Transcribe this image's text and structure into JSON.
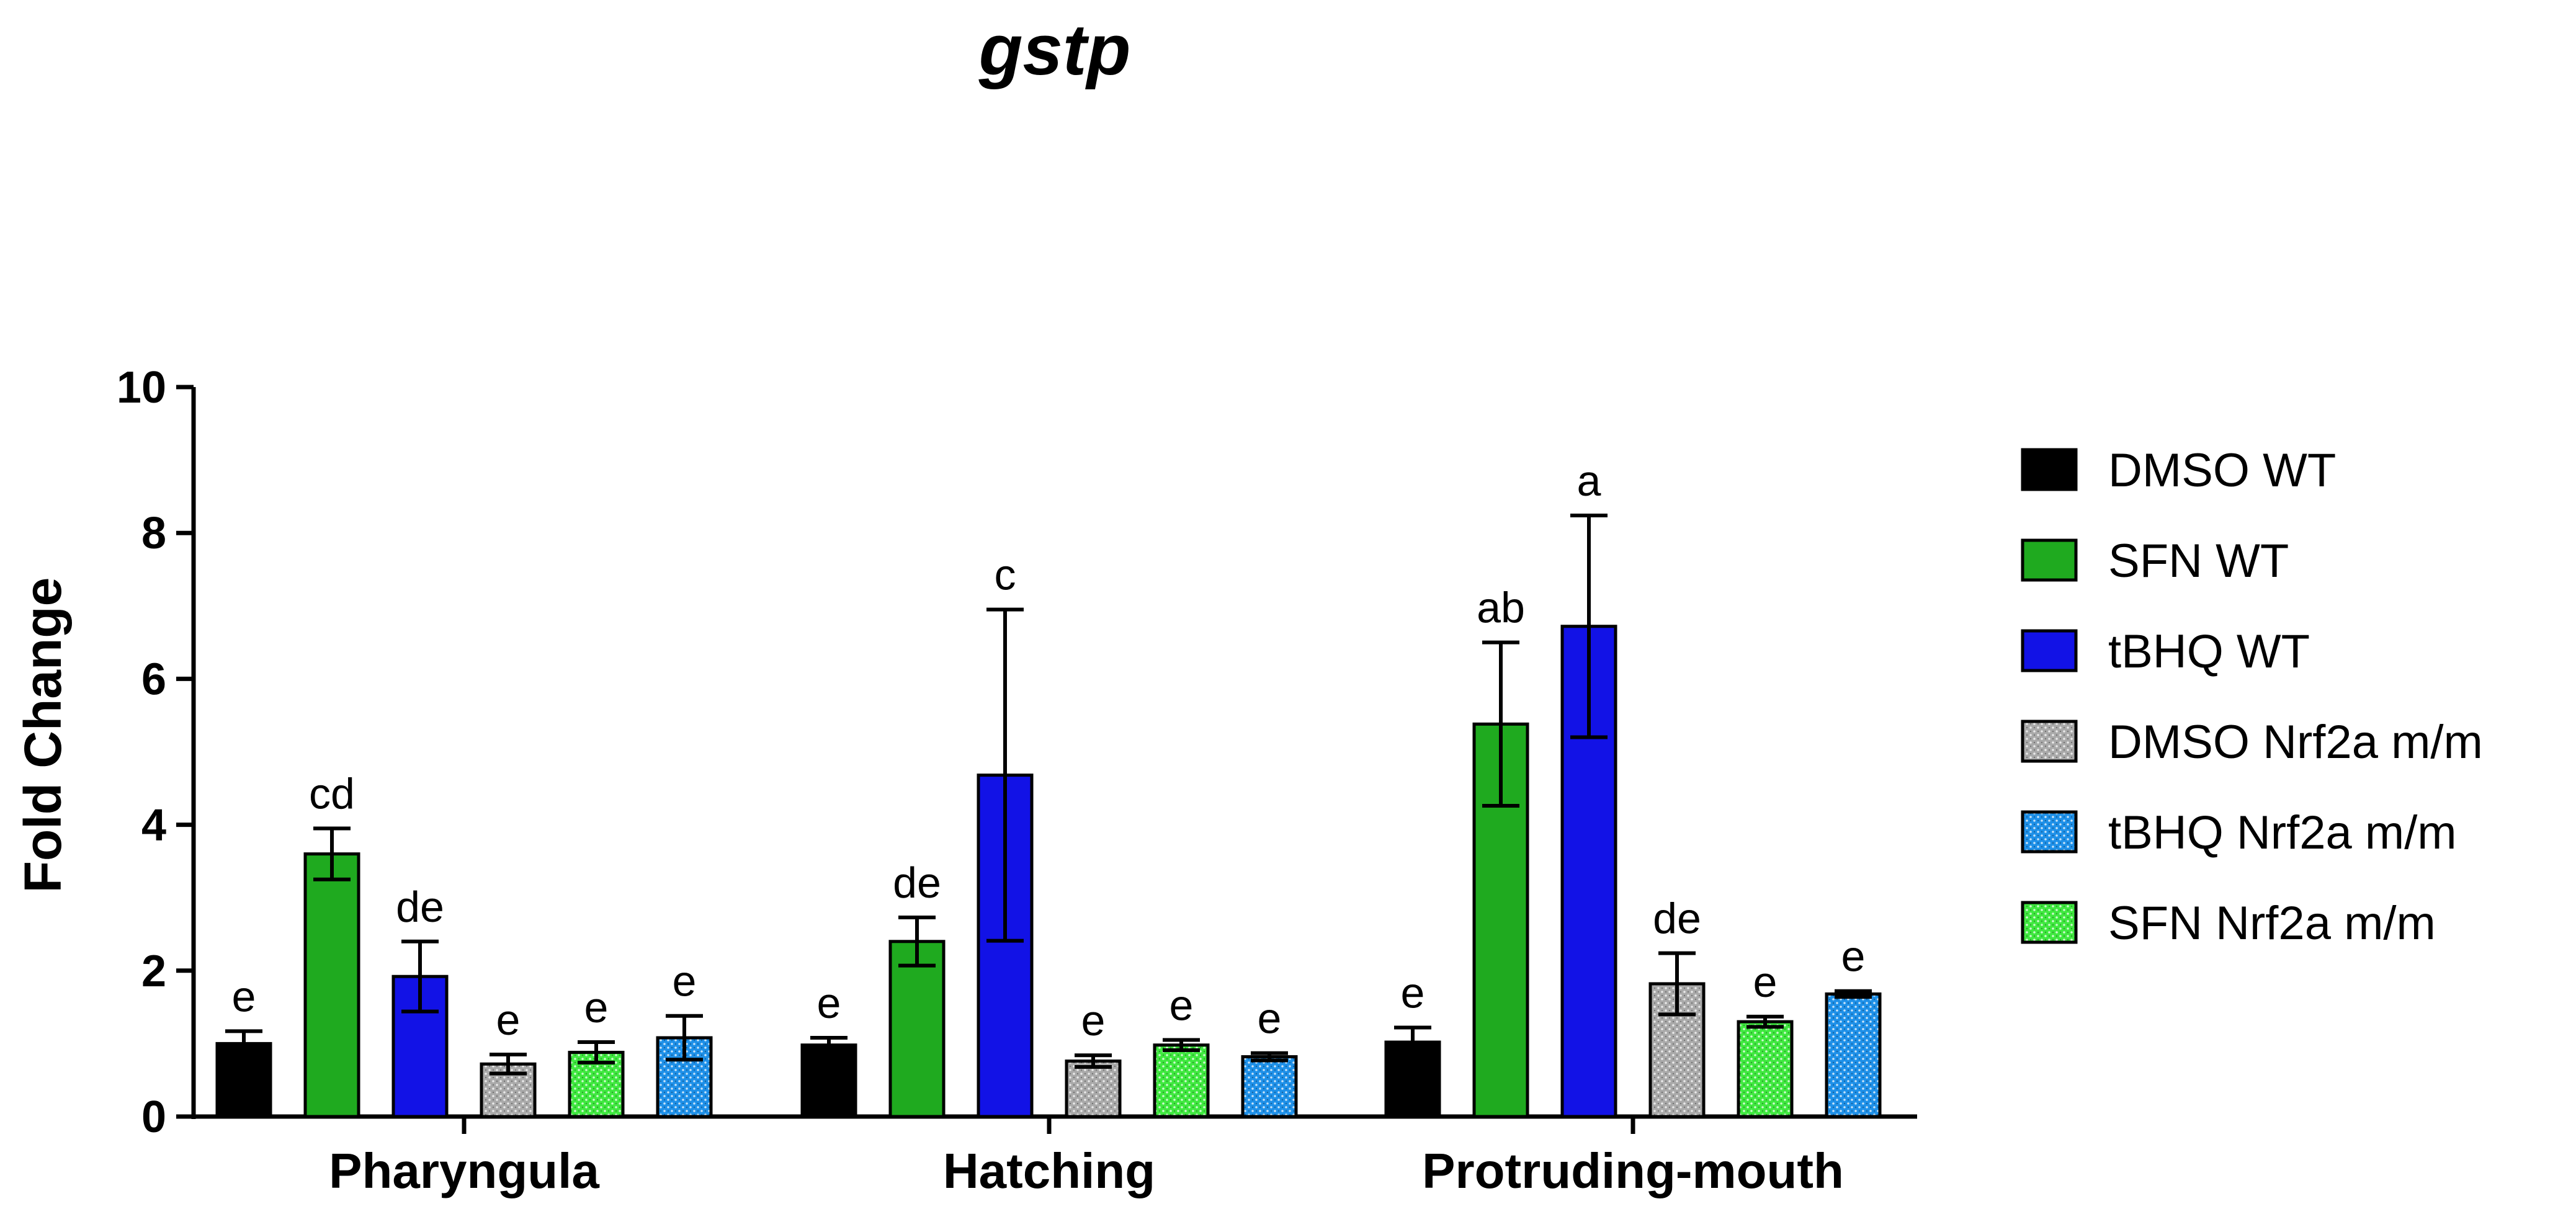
{
  "chart_data": {
    "type": "bar",
    "title": "gstp",
    "xlabel": "",
    "ylabel": "Fold Change",
    "ylim": [
      0,
      10
    ],
    "yticks": [
      0,
      2,
      4,
      6,
      8,
      10
    ],
    "categories": [
      "Pharyngula",
      "Hatching",
      "Protruding-mouth"
    ],
    "series": [
      {
        "name": "DMSO WT",
        "color": "#000000",
        "pattern": "solid",
        "values": [
          1.0,
          0.98,
          1.02
        ],
        "errors": [
          0.17,
          0.1,
          0.2
        ],
        "labels": [
          "e",
          "e",
          "e"
        ]
      },
      {
        "name": "SFN WT",
        "color": "#1faa1f",
        "pattern": "solid",
        "values": [
          3.6,
          2.4,
          5.38
        ],
        "errors": [
          0.35,
          0.33,
          1.12
        ],
        "labels": [
          "cd",
          "de",
          "ab"
        ]
      },
      {
        "name": "tBHQ WT",
        "color": "#1212e6",
        "pattern": "solid",
        "values": [
          1.92,
          4.68,
          6.72
        ],
        "errors": [
          0.48,
          2.27,
          1.52
        ],
        "labels": [
          "de",
          "c",
          "a"
        ]
      },
      {
        "name": "DMSO Nrf2a m/m",
        "color": "#a9a9a9",
        "pattern": "dots",
        "values": [
          0.72,
          0.76,
          1.82
        ],
        "errors": [
          0.13,
          0.08,
          0.42
        ],
        "labels": [
          "e",
          "e",
          "de"
        ]
      },
      {
        "name": "SFN Nrf2a m/m",
        "color": "#3fe83f",
        "pattern": "dots",
        "values": [
          0.88,
          0.98,
          1.3
        ],
        "errors": [
          0.14,
          0.07,
          0.07
        ],
        "labels": [
          "e",
          "e",
          "e"
        ]
      },
      {
        "name": "tBHQ Nrf2a m/m",
        "color": "#1e90e8",
        "pattern": "dots",
        "values": [
          1.08,
          0.82,
          1.68
        ],
        "errors": [
          0.3,
          0.05,
          0.04
        ],
        "labels": [
          "e",
          "e",
          "e"
        ]
      }
    ],
    "legend": {
      "placement": "right",
      "order": [
        "DMSO WT",
        "SFN WT",
        "tBHQ WT",
        "DMSO Nrf2a m/m",
        "tBHQ Nrf2a m/m",
        "SFN Nrf2a m/m"
      ]
    }
  }
}
